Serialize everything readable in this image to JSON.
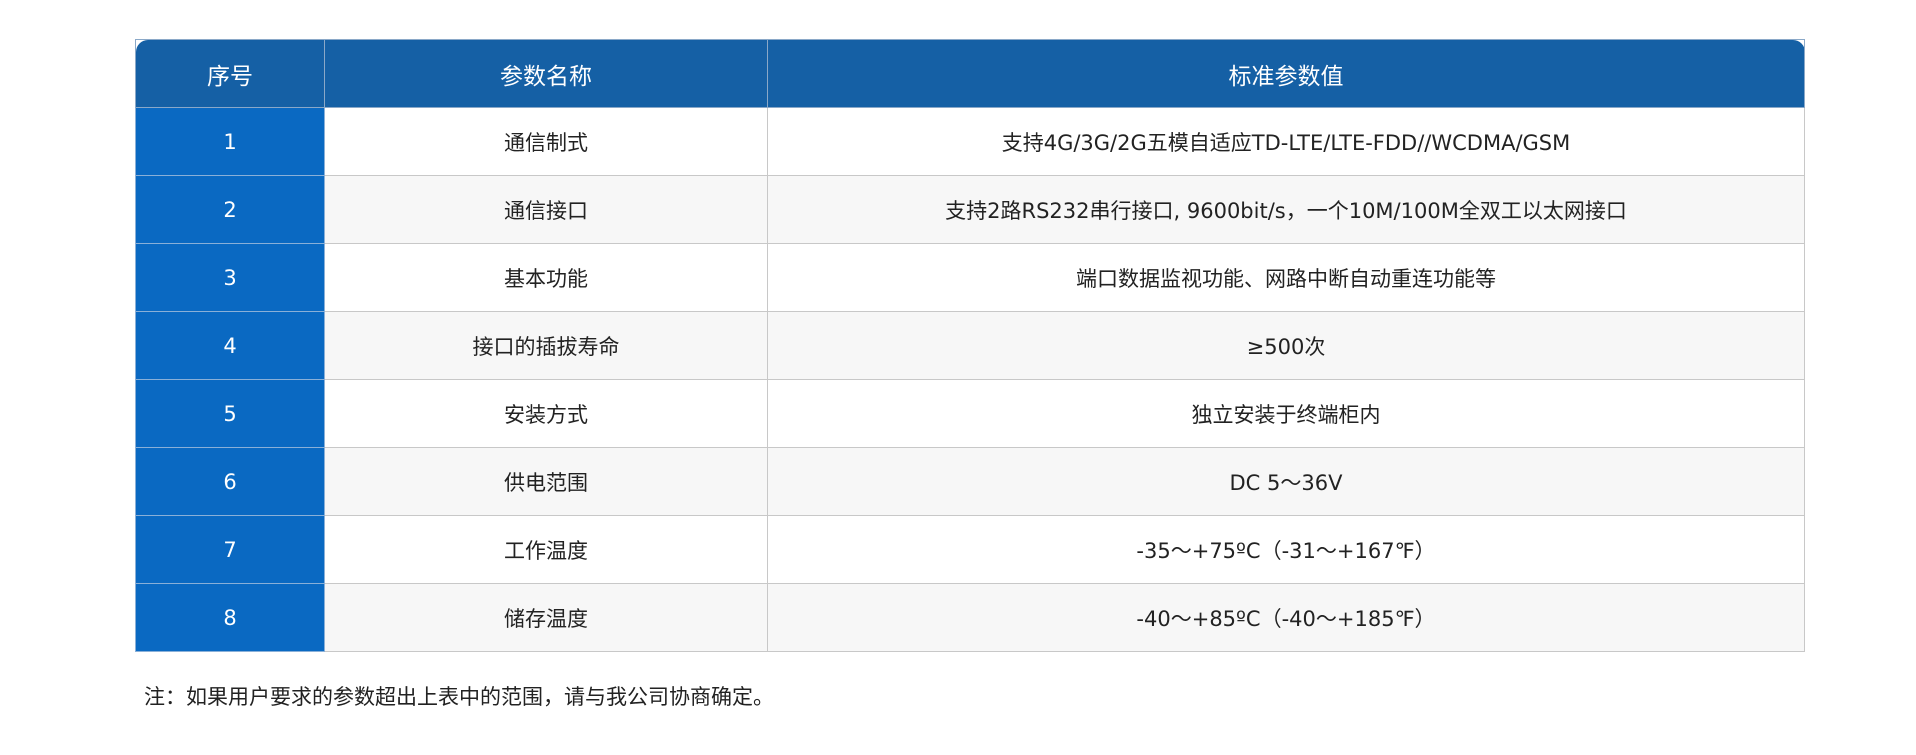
{
  "table": {
    "headers": [
      "序号",
      "参数名称",
      "标准参数值"
    ],
    "rows": [
      {
        "index": "1",
        "name": "通信制式",
        "value": "支持4G/3G/2G五模自适应TD-LTE/LTE-FDD//WCDMA/GSM"
      },
      {
        "index": "2",
        "name": "通信接口",
        "value": "支持2路RS232串行接口, 9600bit/s，一个10M/100M全双工以太网接口"
      },
      {
        "index": "3",
        "name": "基本功能",
        "value": "端口数据监视功能、网路中断自动重连功能等"
      },
      {
        "index": "4",
        "name": "接口的插拔寿命",
        "value": "≥500次"
      },
      {
        "index": "5",
        "name": "安装方式",
        "value": "独立安装于终端柜内"
      },
      {
        "index": "6",
        "name": "供电范围",
        "value": "DC 5～36V"
      },
      {
        "index": "7",
        "name": "工作温度",
        "value": "-35～+75ºC（-31～+167℉）"
      },
      {
        "index": "8",
        "name": "储存温度",
        "value": "-40～+85ºC（-40～+185℉）"
      }
    ]
  },
  "note": "注：如果用户要求的参数超出上表中的范围，请与我公司协商确定。",
  "colors": {
    "header_bg": "#1560a5",
    "index_bg": "#0a69c2",
    "alt_row_bg": "#f7f7f7"
  }
}
